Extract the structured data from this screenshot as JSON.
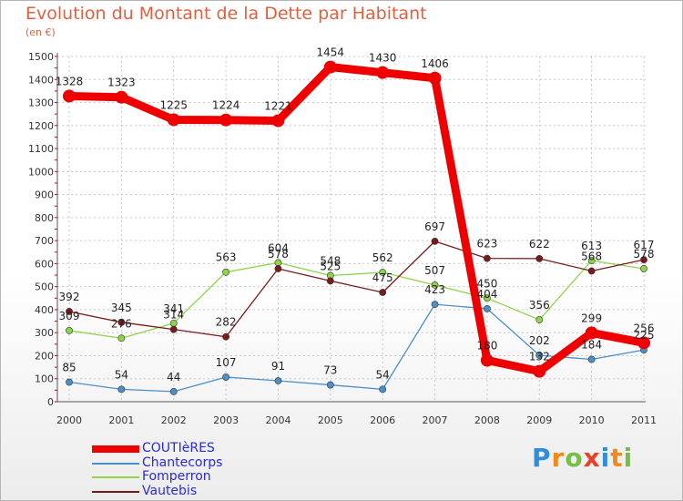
{
  "chart_data": {
    "type": "line",
    "title": "Evolution du Montant de la Dette par Habitant",
    "subtitle": "(en €)",
    "xlabel": "",
    "ylabel": "",
    "categories": [
      "2000",
      "2001",
      "2002",
      "2003",
      "2004",
      "2005",
      "2006",
      "2007",
      "2008",
      "2009",
      "2010",
      "2011"
    ],
    "ylim": [
      0,
      1500
    ],
    "yticks": [
      "0",
      "100",
      "200",
      "300",
      "400",
      "500",
      "600",
      "700",
      "800",
      "900",
      "1000",
      "1100",
      "1200",
      "1300",
      "1400",
      "1500"
    ],
    "grid": true,
    "legend_position": "bottom-left",
    "series": [
      {
        "name": "COUTIèRES",
        "color": "#ee0000",
        "values": [
          1328,
          1323,
          1225,
          1224,
          1221,
          1454,
          1430,
          1406,
          180,
          132,
          299,
          256
        ],
        "labels": [
          "1328",
          "1323",
          "1225",
          "1224",
          "1221",
          "1454",
          "1430",
          "1406",
          "180",
          "132",
          "299",
          "256"
        ]
      },
      {
        "name": "Chantecorps",
        "color": "#4a90c8",
        "values": [
          85,
          54,
          44,
          107,
          91,
          73,
          54,
          423,
          404,
          202,
          184,
          225
        ],
        "labels": [
          "85",
          "54",
          "44",
          "107",
          "91",
          "73",
          "54",
          "423",
          "404",
          "202",
          "184",
          "225"
        ]
      },
      {
        "name": "Fomperron",
        "color": "#8ed44a",
        "values": [
          309,
          276,
          341,
          563,
          604,
          548,
          562,
          507,
          450,
          356,
          613,
          578
        ],
        "labels": [
          "309",
          "276",
          "341",
          "563",
          "604",
          "548",
          "562",
          "507",
          "450",
          "356",
          "613",
          "578"
        ]
      },
      {
        "name": "Vautebis",
        "color": "#7a1a1a",
        "values": [
          392,
          345,
          314,
          282,
          578,
          525,
          475,
          697,
          623,
          622,
          568,
          617
        ],
        "labels": [
          "392",
          "345",
          "314",
          "282",
          "578",
          "525",
          "475",
          "697",
          "623",
          "622",
          "568",
          "617"
        ]
      }
    ]
  },
  "logo": {
    "letters": [
      "P",
      "r",
      "o",
      "x",
      "i",
      "t",
      "i"
    ],
    "colors": [
      "#2e8fd8",
      "#f08a1c",
      "#74c043",
      "#e8402a",
      "#2e8fd8",
      "#f08a1c",
      "#74c043"
    ]
  }
}
